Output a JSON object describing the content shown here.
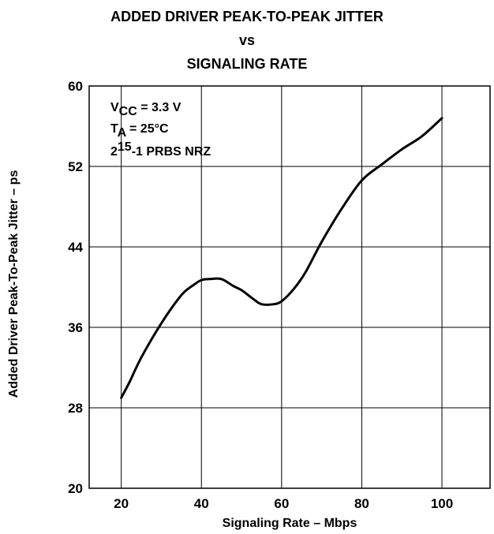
{
  "chart_data": {
    "type": "line",
    "title": "ADDED DRIVER PEAK-TO-PEAK JITTER",
    "subtitle_vs": "vs",
    "subtitle": "SIGNALING RATE",
    "xlabel": "Signaling Rate – Mbps",
    "ylabel": "Added Driver Peak-To-Peak Jitter – ps",
    "xlim": [
      12,
      112
    ],
    "ylim": [
      20,
      60
    ],
    "xticks": [
      20,
      40,
      60,
      80,
      100
    ],
    "yticks": [
      20,
      28,
      36,
      44,
      52,
      60
    ],
    "grid": true,
    "series": [
      {
        "x": [
          20,
          22,
          25,
          30,
          35,
          38,
          40,
          42,
          45,
          48,
          50,
          53,
          55,
          58,
          60,
          63,
          66,
          70,
          75,
          80,
          85,
          90,
          95,
          100
        ],
        "y": [
          29.0,
          30.5,
          33.0,
          36.4,
          39.2,
          40.2,
          40.7,
          40.8,
          40.8,
          40.1,
          39.7,
          38.8,
          38.3,
          38.3,
          38.6,
          39.8,
          41.5,
          44.5,
          47.8,
          50.6,
          52.2,
          53.7,
          55.0,
          56.8
        ]
      }
    ],
    "annotations": {
      "vcc_prefix": "V",
      "vcc_sub": "CC",
      "vcc_value": " = 3.3 V",
      "ta_prefix": "T",
      "ta_sub": "A",
      "ta_value": " = 25°C",
      "prbs_base": "2",
      "prbs_sup": "15",
      "prbs_value": "-1 PRBS NRZ"
    },
    "line_color": "#000000"
  }
}
